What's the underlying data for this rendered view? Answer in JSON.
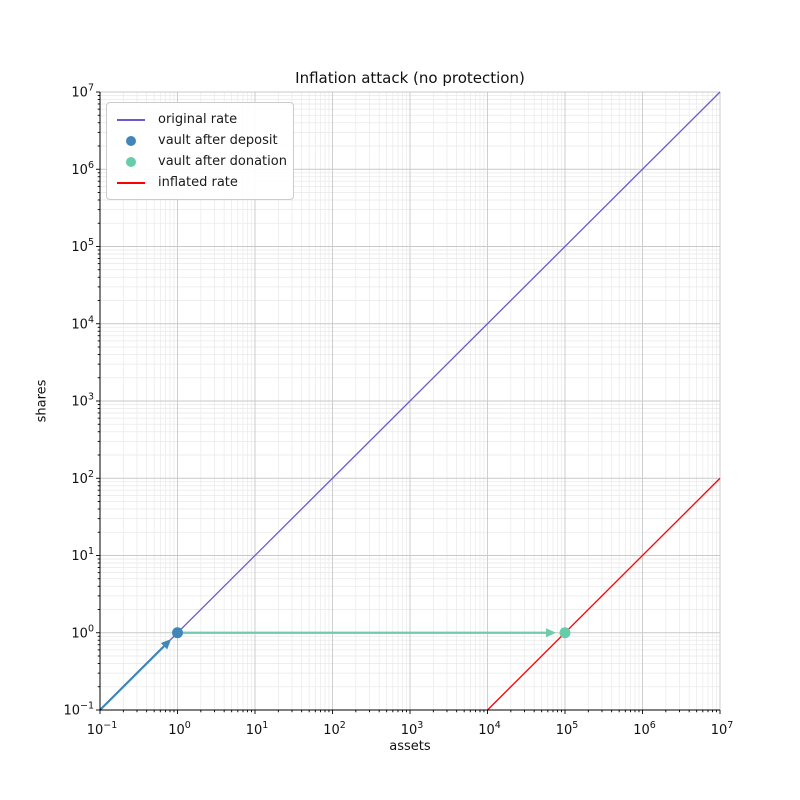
{
  "figure": {
    "title": "Inflation attack (no protection)",
    "xlabel": "assets",
    "ylabel": "shares",
    "background_color": "#ffffff"
  },
  "chart_data": {
    "type": "line",
    "title": "Inflation attack (no protection)",
    "xlabel": "assets",
    "ylabel": "shares",
    "x_scale": "log",
    "y_scale": "log",
    "xlim": [
      0.1,
      10000000
    ],
    "ylim": [
      0.1,
      10000000
    ],
    "x_tick_exponents": [
      -1,
      0,
      1,
      2,
      3,
      4,
      5,
      6,
      7
    ],
    "y_tick_exponents": [
      -1,
      0,
      1,
      2,
      3,
      4,
      5,
      6,
      7
    ],
    "grid": {
      "major": true,
      "minor": true,
      "major_color": "#c9c9c9",
      "minor_color": "#e9e9e9"
    },
    "spine_color": "#000000",
    "legend_position": "upper left",
    "series": [
      {
        "name": "original rate",
        "type": "line",
        "color": "#6a5acd",
        "linewidth": 1.3,
        "x": [
          0.1,
          10000000
        ],
        "y": [
          0.1,
          10000000
        ]
      },
      {
        "name": "vault after deposit",
        "type": "scatter",
        "color": "#4286b8",
        "marker_radius": 5.5,
        "x": [
          1
        ],
        "y": [
          1
        ]
      },
      {
        "name": "vault after donation",
        "type": "scatter",
        "color": "#66cdaa",
        "marker_radius": 5.5,
        "x": [
          100000
        ],
        "y": [
          1
        ]
      },
      {
        "name": "inflated rate",
        "type": "line",
        "color": "#ff0000",
        "linewidth": 1.3,
        "x": [
          10000,
          10000000
        ],
        "y": [
          0.1,
          100
        ]
      }
    ],
    "annotations": [
      {
        "name": "deposit-arrow",
        "type": "arrow",
        "color": "#4286b8",
        "linewidth": 2.2,
        "from": [
          0.1,
          0.1
        ],
        "to": [
          1,
          1
        ]
      },
      {
        "name": "donation-arrow",
        "type": "arrow",
        "color": "#6fcbaa",
        "linewidth": 2.2,
        "from": [
          1,
          1
        ],
        "to": [
          100000,
          1
        ]
      }
    ]
  }
}
